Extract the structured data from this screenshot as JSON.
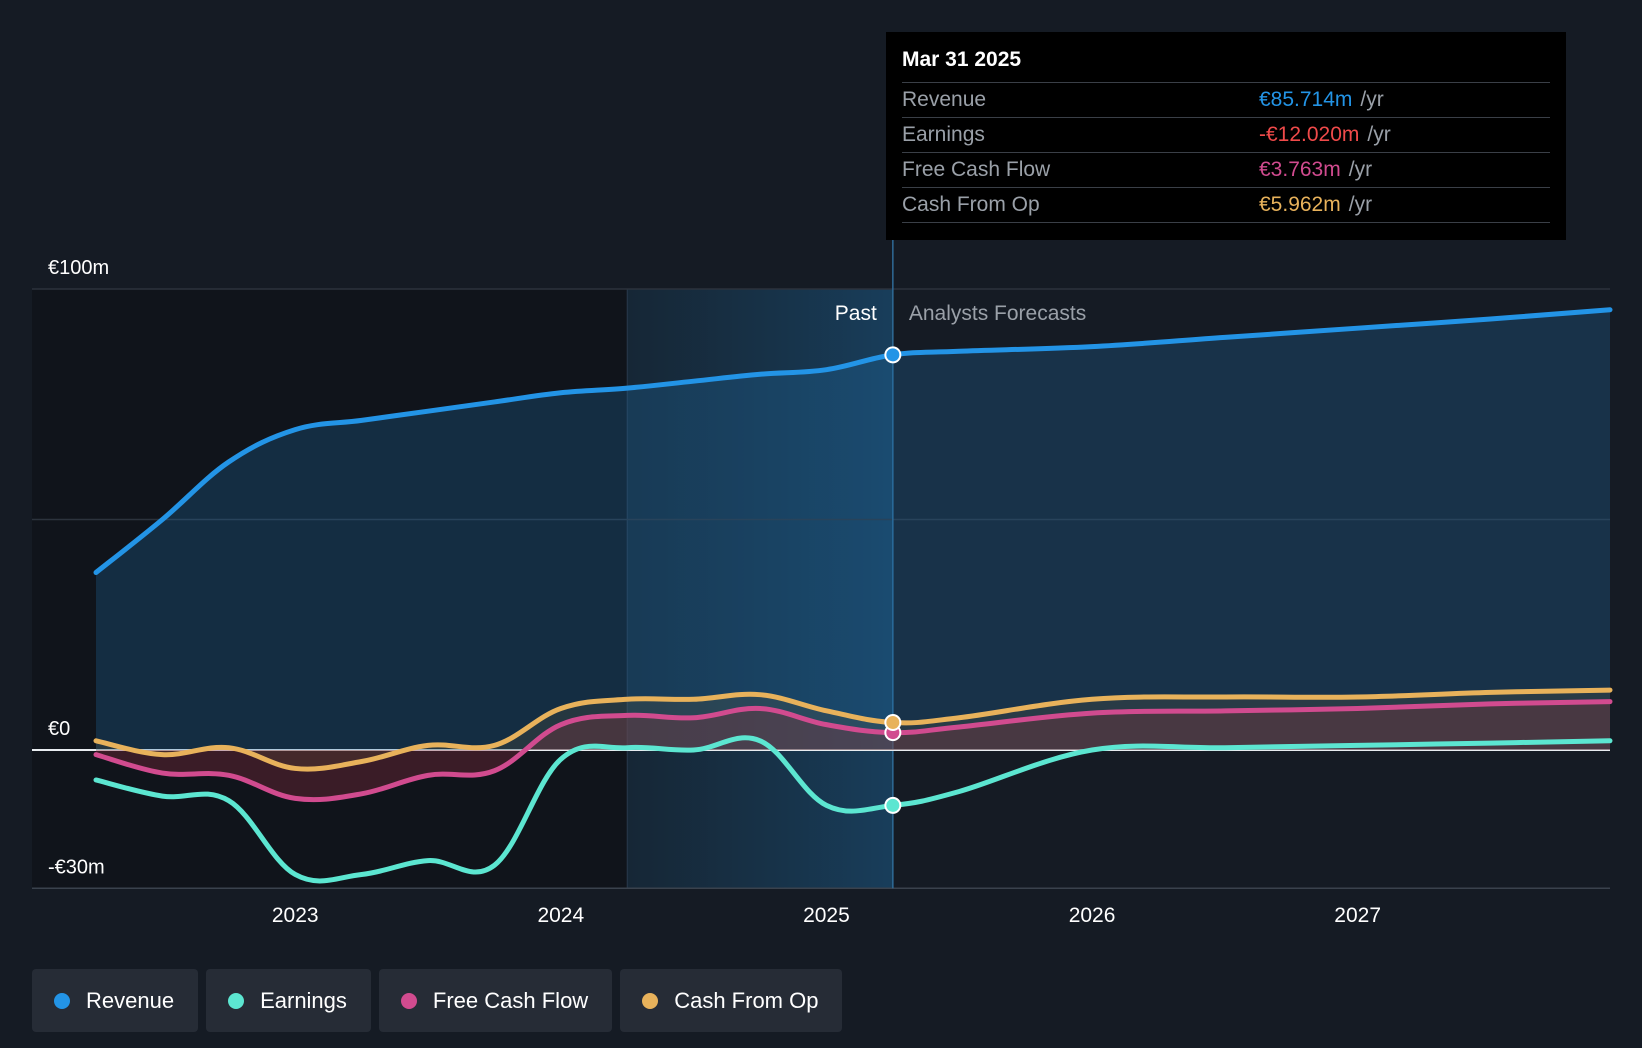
{
  "chart_data": {
    "type": "area",
    "title": "",
    "xlabel": "",
    "ylabel": "",
    "x_ticks": [
      "2023",
      "2024",
      "2025",
      "2026",
      "2027"
    ],
    "y_ticks": [
      {
        "value": 100,
        "label": "€100m"
      },
      {
        "value": 0,
        "label": "€0"
      },
      {
        "value": -30,
        "label": "-€30m"
      }
    ],
    "xlim": [
      2022.25,
      2027.95
    ],
    "ylim": [
      -30,
      100
    ],
    "grid": true,
    "past_label": "Past",
    "forecast_label": "Analysts Forecasts",
    "divider_x": 2025.25,
    "highlight_start_x": 2024.25,
    "series": [
      {
        "name": "Revenue",
        "color": "#2394e6",
        "fill": true,
        "points": [
          [
            2022.25,
            38.5
          ],
          [
            2022.5,
            50
          ],
          [
            2022.75,
            62.5
          ],
          [
            2023.0,
            69.5
          ],
          [
            2023.25,
            71.5
          ],
          [
            2023.5,
            73.5
          ],
          [
            2023.75,
            75.5
          ],
          [
            2024.0,
            77.5
          ],
          [
            2024.25,
            78.5
          ],
          [
            2024.5,
            80
          ],
          [
            2024.75,
            81.5
          ],
          [
            2025.0,
            82.5
          ],
          [
            2025.25,
            85.714
          ],
          [
            2025.5,
            86.5
          ],
          [
            2026.0,
            87.5
          ],
          [
            2026.5,
            89.5
          ],
          [
            2027.0,
            91.5
          ],
          [
            2027.5,
            93.5
          ],
          [
            2027.95,
            95.5
          ]
        ]
      },
      {
        "name": "Earnings",
        "color": "#5ce6d1",
        "fill": false,
        "points": [
          [
            2022.25,
            -6.5
          ],
          [
            2022.5,
            -10
          ],
          [
            2022.75,
            -11
          ],
          [
            2023.0,
            -27
          ],
          [
            2023.25,
            -27
          ],
          [
            2023.5,
            -24
          ],
          [
            2023.75,
            -25
          ],
          [
            2024.0,
            -2
          ],
          [
            2024.25,
            0.5
          ],
          [
            2024.5,
            0
          ],
          [
            2024.75,
            2
          ],
          [
            2025.0,
            -12
          ],
          [
            2025.25,
            -12.02
          ],
          [
            2025.5,
            -9
          ],
          [
            2026.0,
            0
          ],
          [
            2026.5,
            0.5
          ],
          [
            2027.0,
            1
          ],
          [
            2027.5,
            1.5
          ],
          [
            2027.95,
            2
          ]
        ]
      },
      {
        "name": "Free Cash Flow",
        "color": "#d14b8f",
        "fill": true,
        "points": [
          [
            2022.25,
            -1
          ],
          [
            2022.5,
            -5
          ],
          [
            2022.75,
            -5.5
          ],
          [
            2023.0,
            -10.5
          ],
          [
            2023.25,
            -9.5
          ],
          [
            2023.5,
            -5.5
          ],
          [
            2023.75,
            -4.5
          ],
          [
            2024.0,
            5.5
          ],
          [
            2024.25,
            7.5
          ],
          [
            2024.5,
            7
          ],
          [
            2024.75,
            9
          ],
          [
            2025.0,
            5.5
          ],
          [
            2025.25,
            3.763
          ],
          [
            2025.5,
            5
          ],
          [
            2026.0,
            8
          ],
          [
            2026.5,
            8.5
          ],
          [
            2027.0,
            9
          ],
          [
            2027.5,
            10
          ],
          [
            2027.95,
            10.5
          ]
        ]
      },
      {
        "name": "Cash From Op",
        "color": "#e8b25b",
        "fill": true,
        "points": [
          [
            2022.25,
            2
          ],
          [
            2022.5,
            -1
          ],
          [
            2022.75,
            0.5
          ],
          [
            2023.0,
            -4
          ],
          [
            2023.25,
            -2.5
          ],
          [
            2023.5,
            1
          ],
          [
            2023.75,
            1
          ],
          [
            2024.0,
            9
          ],
          [
            2024.25,
            11
          ],
          [
            2024.5,
            11
          ],
          [
            2024.75,
            12
          ],
          [
            2025.0,
            8.5
          ],
          [
            2025.25,
            5.962
          ],
          [
            2025.5,
            7
          ],
          [
            2026.0,
            11
          ],
          [
            2026.5,
            11.5
          ],
          [
            2027.0,
            11.5
          ],
          [
            2027.5,
            12.5
          ],
          [
            2027.95,
            13
          ]
        ]
      }
    ]
  },
  "tooltip": {
    "date": "Mar 31 2025",
    "rows": [
      {
        "label": "Revenue",
        "value": "€85.714m",
        "unit": "/yr",
        "color": "#2394e6"
      },
      {
        "label": "Earnings",
        "value": "-€12.020m",
        "unit": "/yr",
        "color": "#f04a4a"
      },
      {
        "label": "Free Cash Flow",
        "value": "€3.763m",
        "unit": "/yr",
        "color": "#d14b8f"
      },
      {
        "label": "Cash From Op",
        "value": "€5.962m",
        "unit": "/yr",
        "color": "#e8b25b"
      }
    ]
  },
  "legend": [
    {
      "label": "Revenue",
      "color": "#2394e6"
    },
    {
      "label": "Earnings",
      "color": "#5ce6d1"
    },
    {
      "label": "Free Cash Flow",
      "color": "#d14b8f"
    },
    {
      "label": "Cash From Op",
      "color": "#e8b25b"
    }
  ]
}
